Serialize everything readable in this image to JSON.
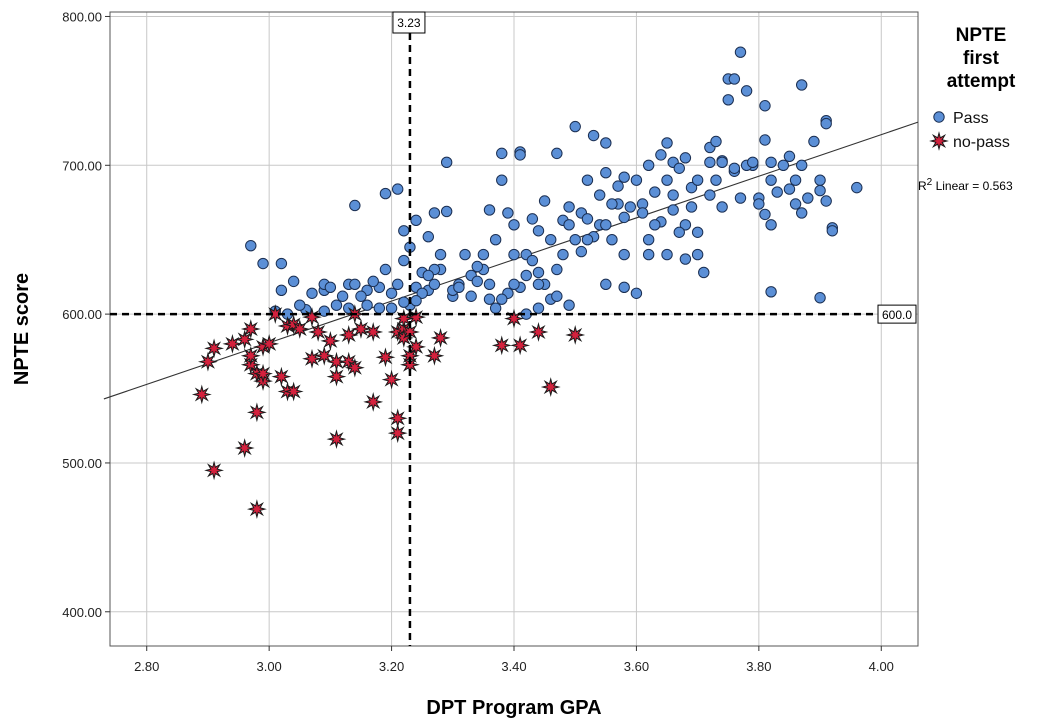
{
  "chart_data": {
    "type": "scatter",
    "xlabel": "DPT Program GPA",
    "ylabel": "NPTE score",
    "xlim": [
      2.74,
      4.06
    ],
    "ylim": [
      377,
      803
    ],
    "x_ticks": [
      "2.80",
      "3.00",
      "3.20",
      "3.40",
      "3.60",
      "3.80",
      "4.00"
    ],
    "x_tick_values": [
      2.8,
      3.0,
      3.2,
      3.4,
      3.6,
      3.8,
      4.0
    ],
    "y_ticks": [
      "400.00",
      "500.00",
      "600.00",
      "700.00",
      "800.00"
    ],
    "y_tick_values": [
      400,
      500,
      600,
      700,
      800
    ],
    "grid": true,
    "legend": {
      "title_lines": [
        "NPTE",
        "first",
        "attempt"
      ],
      "position": "top-right",
      "entries": [
        {
          "label": "Pass",
          "marker": "circle",
          "color": "#5b8fd6"
        },
        {
          "label": "no-pass",
          "marker": "star",
          "color": "#d4213d"
        }
      ]
    },
    "reference_lines": [
      {
        "axis": "x",
        "value": 3.23,
        "label": "3.23"
      },
      {
        "axis": "y",
        "value": 600,
        "label": "600.0"
      }
    ],
    "fit_line": {
      "label_prefix": "R",
      "label_sup": "2",
      "label_suffix": " Linear = 0.563",
      "x": [
        2.73,
        4.06
      ],
      "y": [
        543,
        729
      ]
    },
    "series": [
      {
        "name": "Pass",
        "marker": "circle",
        "color": "#5b8fd6",
        "points": [
          [
            2.97,
            646
          ],
          [
            2.99,
            634
          ],
          [
            3.02,
            634
          ],
          [
            3.04,
            622
          ],
          [
            3.02,
            616
          ],
          [
            3.07,
            614
          ],
          [
            3.09,
            616
          ],
          [
            3.09,
            620
          ],
          [
            3.13,
            620
          ],
          [
            3.14,
            620
          ],
          [
            3.16,
            616
          ],
          [
            3.18,
            618
          ],
          [
            3.14,
            673
          ],
          [
            3.19,
            681
          ],
          [
            3.21,
            684
          ],
          [
            3.22,
            656
          ],
          [
            3.24,
            663
          ],
          [
            3.27,
            668
          ],
          [
            3.29,
            669
          ],
          [
            3.29,
            702
          ],
          [
            3.22,
            636
          ],
          [
            3.25,
            628
          ],
          [
            3.28,
            630
          ],
          [
            3.23,
            606
          ],
          [
            3.19,
            630
          ],
          [
            3.2,
            614
          ],
          [
            3.24,
            618
          ],
          [
            3.26,
            616
          ],
          [
            3.27,
            620
          ],
          [
            3.3,
            612
          ],
          [
            3.33,
            626
          ],
          [
            3.35,
            630
          ],
          [
            3.36,
            620
          ],
          [
            3.32,
            640
          ],
          [
            3.37,
            650
          ],
          [
            3.38,
            690
          ],
          [
            3.38,
            708
          ],
          [
            3.41,
            709
          ],
          [
            3.41,
            707
          ],
          [
            3.39,
            668
          ],
          [
            3.4,
            660
          ],
          [
            3.43,
            664
          ],
          [
            3.44,
            656
          ],
          [
            3.45,
            676
          ],
          [
            3.42,
            640
          ],
          [
            3.44,
            628
          ],
          [
            3.46,
            650
          ],
          [
            3.48,
            663
          ],
          [
            3.47,
            708
          ],
          [
            3.5,
            726
          ],
          [
            3.53,
            720
          ],
          [
            3.55,
            715
          ],
          [
            3.52,
            690
          ],
          [
            3.55,
            695
          ],
          [
            3.49,
            672
          ],
          [
            3.51,
            668
          ],
          [
            3.54,
            680
          ],
          [
            3.57,
            674
          ],
          [
            3.56,
            650
          ],
          [
            3.58,
            640
          ],
          [
            3.55,
            620
          ],
          [
            3.58,
            618
          ],
          [
            3.6,
            614
          ],
          [
            3.62,
            640
          ],
          [
            3.59,
            672
          ],
          [
            3.62,
            700
          ],
          [
            3.64,
            707
          ],
          [
            3.65,
            715
          ],
          [
            3.66,
            702
          ],
          [
            3.67,
            698
          ],
          [
            3.68,
            705
          ],
          [
            3.69,
            685
          ],
          [
            3.66,
            670
          ],
          [
            3.64,
            662
          ],
          [
            3.65,
            640
          ],
          [
            3.68,
            637
          ],
          [
            3.7,
            640
          ],
          [
            3.71,
            628
          ],
          [
            3.72,
            680
          ],
          [
            3.72,
            712
          ],
          [
            3.73,
            716
          ],
          [
            3.74,
            703
          ],
          [
            3.75,
            744
          ],
          [
            3.75,
            758
          ],
          [
            3.76,
            758
          ],
          [
            3.77,
            776
          ],
          [
            3.78,
            750
          ],
          [
            3.81,
            740
          ],
          [
            3.81,
            717
          ],
          [
            3.79,
            700
          ],
          [
            3.82,
            702
          ],
          [
            3.82,
            690
          ],
          [
            3.83,
            682
          ],
          [
            3.8,
            678
          ],
          [
            3.8,
            674
          ],
          [
            3.81,
            667
          ],
          [
            3.82,
            660
          ],
          [
            3.82,
            615
          ],
          [
            3.84,
            700
          ],
          [
            3.85,
            684
          ],
          [
            3.86,
            690
          ],
          [
            3.87,
            700
          ],
          [
            3.87,
            754
          ],
          [
            3.89,
            716
          ],
          [
            3.9,
            690
          ],
          [
            3.9,
            683
          ],
          [
            3.91,
            730
          ],
          [
            3.91,
            728
          ],
          [
            3.91,
            676
          ],
          [
            3.92,
            658
          ],
          [
            3.92,
            656
          ],
          [
            3.96,
            685
          ],
          [
            3.9,
            611
          ],
          [
            3.88,
            678
          ],
          [
            3.86,
            674
          ],
          [
            3.87,
            668
          ],
          [
            3.85,
            706
          ],
          [
            3.78,
            700
          ],
          [
            3.77,
            678
          ],
          [
            3.76,
            696
          ],
          [
            3.74,
            702
          ],
          [
            3.73,
            690
          ],
          [
            3.7,
            690
          ],
          [
            3.69,
            672
          ],
          [
            3.68,
            660
          ],
          [
            3.67,
            655
          ],
          [
            3.66,
            680
          ],
          [
            3.63,
            660
          ],
          [
            3.62,
            650
          ],
          [
            3.61,
            674
          ],
          [
            3.6,
            690
          ],
          [
            3.58,
            692
          ],
          [
            3.57,
            686
          ],
          [
            3.56,
            674
          ],
          [
            3.54,
            660
          ],
          [
            3.53,
            652
          ],
          [
            3.52,
            650
          ],
          [
            3.51,
            642
          ],
          [
            3.5,
            650
          ],
          [
            3.49,
            660
          ],
          [
            3.48,
            640
          ],
          [
            3.47,
            630
          ],
          [
            3.46,
            610
          ],
          [
            3.45,
            620
          ],
          [
            3.44,
            620
          ],
          [
            3.43,
            636
          ],
          [
            3.42,
            626
          ],
          [
            3.41,
            618
          ],
          [
            3.4,
            620
          ],
          [
            3.39,
            614
          ],
          [
            3.38,
            610
          ],
          [
            3.37,
            604
          ],
          [
            3.36,
            610
          ],
          [
            3.35,
            640
          ],
          [
            3.34,
            632
          ],
          [
            3.33,
            612
          ],
          [
            3.31,
            620
          ],
          [
            3.3,
            616
          ],
          [
            3.28,
            640
          ],
          [
            3.27,
            630
          ],
          [
            3.26,
            626
          ],
          [
            3.25,
            614
          ],
          [
            3.24,
            609
          ],
          [
            3.22,
            608
          ],
          [
            3.21,
            620
          ],
          [
            3.2,
            604
          ],
          [
            3.18,
            604
          ],
          [
            3.16,
            606
          ],
          [
            3.15,
            612
          ],
          [
            3.13,
            604
          ],
          [
            3.11,
            606
          ],
          [
            3.09,
            602
          ],
          [
            3.06,
            603
          ],
          [
            3.05,
            606
          ],
          [
            3.03,
            600
          ],
          [
            3.01,
            602
          ],
          [
            3.1,
            618
          ],
          [
            3.12,
            612
          ],
          [
            3.17,
            622
          ],
          [
            3.23,
            645
          ],
          [
            3.26,
            652
          ],
          [
            3.31,
            618
          ],
          [
            3.34,
            622
          ],
          [
            3.36,
            670
          ],
          [
            3.4,
            640
          ],
          [
            3.42,
            600
          ],
          [
            3.44,
            604
          ],
          [
            3.47,
            612
          ],
          [
            3.49,
            606
          ],
          [
            3.52,
            664
          ],
          [
            3.55,
            660
          ],
          [
            3.58,
            665
          ],
          [
            3.61,
            668
          ],
          [
            3.63,
            682
          ],
          [
            3.65,
            690
          ],
          [
            3.7,
            655
          ],
          [
            3.72,
            702
          ],
          [
            3.74,
            672
          ],
          [
            3.76,
            698
          ],
          [
            3.79,
            702
          ]
        ]
      },
      {
        "name": "no-pass",
        "marker": "star",
        "color": "#d4213d",
        "points": [
          [
            2.89,
            546
          ],
          [
            2.9,
            568
          ],
          [
            2.91,
            577
          ],
          [
            2.91,
            495
          ],
          [
            2.94,
            580
          ],
          [
            2.96,
            583
          ],
          [
            2.96,
            510
          ],
          [
            2.97,
            590
          ],
          [
            2.97,
            566
          ],
          [
            2.97,
            572
          ],
          [
            2.98,
            560
          ],
          [
            2.98,
            534
          ],
          [
            2.98,
            469
          ],
          [
            2.99,
            578
          ],
          [
            2.99,
            555
          ],
          [
            2.99,
            560
          ],
          [
            3.0,
            580
          ],
          [
            3.01,
            600
          ],
          [
            3.02,
            558
          ],
          [
            3.03,
            548
          ],
          [
            3.03,
            592
          ],
          [
            3.04,
            548
          ],
          [
            3.04,
            593
          ],
          [
            3.05,
            590
          ],
          [
            3.07,
            570
          ],
          [
            3.07,
            598
          ],
          [
            3.08,
            588
          ],
          [
            3.09,
            572
          ],
          [
            3.1,
            582
          ],
          [
            3.11,
            568
          ],
          [
            3.11,
            558
          ],
          [
            3.11,
            516
          ],
          [
            3.13,
            568
          ],
          [
            3.13,
            586
          ],
          [
            3.14,
            564
          ],
          [
            3.14,
            600
          ],
          [
            3.15,
            590
          ],
          [
            3.17,
            588
          ],
          [
            3.17,
            541
          ],
          [
            3.19,
            571
          ],
          [
            3.2,
            556
          ],
          [
            3.21,
            588
          ],
          [
            3.21,
            530
          ],
          [
            3.21,
            520
          ],
          [
            3.22,
            590
          ],
          [
            3.22,
            597
          ],
          [
            3.22,
            584
          ],
          [
            3.23,
            588
          ],
          [
            3.23,
            572
          ],
          [
            3.23,
            566
          ],
          [
            3.24,
            578
          ],
          [
            3.24,
            598
          ],
          [
            3.27,
            572
          ],
          [
            3.28,
            584
          ],
          [
            3.38,
            579
          ],
          [
            3.4,
            597
          ],
          [
            3.41,
            579
          ],
          [
            3.44,
            588
          ],
          [
            3.46,
            551
          ],
          [
            3.5,
            586
          ]
        ]
      }
    ]
  }
}
